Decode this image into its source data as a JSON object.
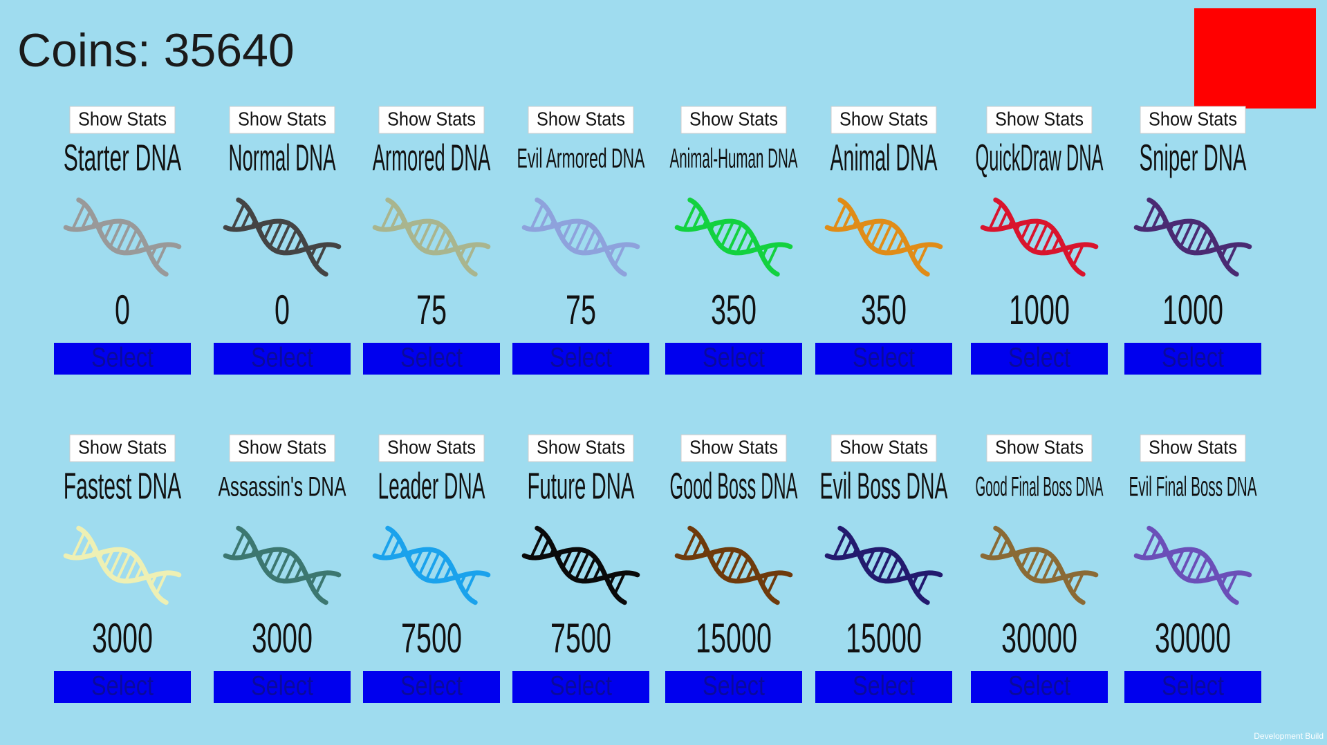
{
  "header": {
    "coins": "Coins: 35640"
  },
  "items": [
    {
      "name": "Starter DNA",
      "price": 0,
      "color": "#999999",
      "show_stats": "Show Stats",
      "select": "Select"
    },
    {
      "name": "Normal DNA",
      "price": 0,
      "color": "#444444",
      "show_stats": "Show Stats",
      "select": "Select"
    },
    {
      "name": "Armored DNA",
      "price": 75,
      "color": "#a9b58e",
      "show_stats": "Show Stats",
      "select": "Select"
    },
    {
      "name": "Evil Armored DNA",
      "price": 75,
      "color": "#8ea2dc",
      "show_stats": "Show Stats",
      "select": "Select"
    },
    {
      "name": "Animal-Human DNA",
      "price": 350,
      "color": "#13d13f",
      "show_stats": "Show Stats",
      "select": "Select"
    },
    {
      "name": "Animal DNA",
      "price": 350,
      "color": "#e08c17",
      "show_stats": "Show Stats",
      "select": "Select"
    },
    {
      "name": "QuickDraw DNA",
      "price": 1000,
      "color": "#d9142d",
      "show_stats": "Show Stats",
      "select": "Select"
    },
    {
      "name": "Sniper DNA",
      "price": 1000,
      "color": "#4a2a72",
      "show_stats": "Show Stats",
      "select": "Select"
    },
    {
      "name": "Fastest DNA",
      "price": 3000,
      "color": "#eef0b4",
      "show_stats": "Show Stats",
      "select": "Select"
    },
    {
      "name": "Assassin's DNA",
      "price": 3000,
      "color": "#3c7770",
      "show_stats": "Show Stats",
      "select": "Select"
    },
    {
      "name": "Leader DNA",
      "price": 7500,
      "color": "#1aa2ec",
      "show_stats": "Show Stats",
      "select": "Select"
    },
    {
      "name": "Future DNA",
      "price": 7500,
      "color": "#0a0a0a",
      "show_stats": "Show Stats",
      "select": "Select"
    },
    {
      "name": "Good Boss DNA",
      "price": 15000,
      "color": "#6e3a0c",
      "show_stats": "Show Stats",
      "select": "Select"
    },
    {
      "name": "Evil Boss DNA",
      "price": 15000,
      "color": "#231a6e",
      "show_stats": "Show Stats",
      "select": "Select"
    },
    {
      "name": "Good Final Boss DNA",
      "price": 30000,
      "color": "#8a6a35",
      "show_stats": "Show Stats",
      "select": "Select"
    },
    {
      "name": "Evil Final Boss DNA",
      "price": 30000,
      "color": "#6b4fb8",
      "show_stats": "Show Stats",
      "select": "Select"
    }
  ],
  "footer": "Development Build"
}
